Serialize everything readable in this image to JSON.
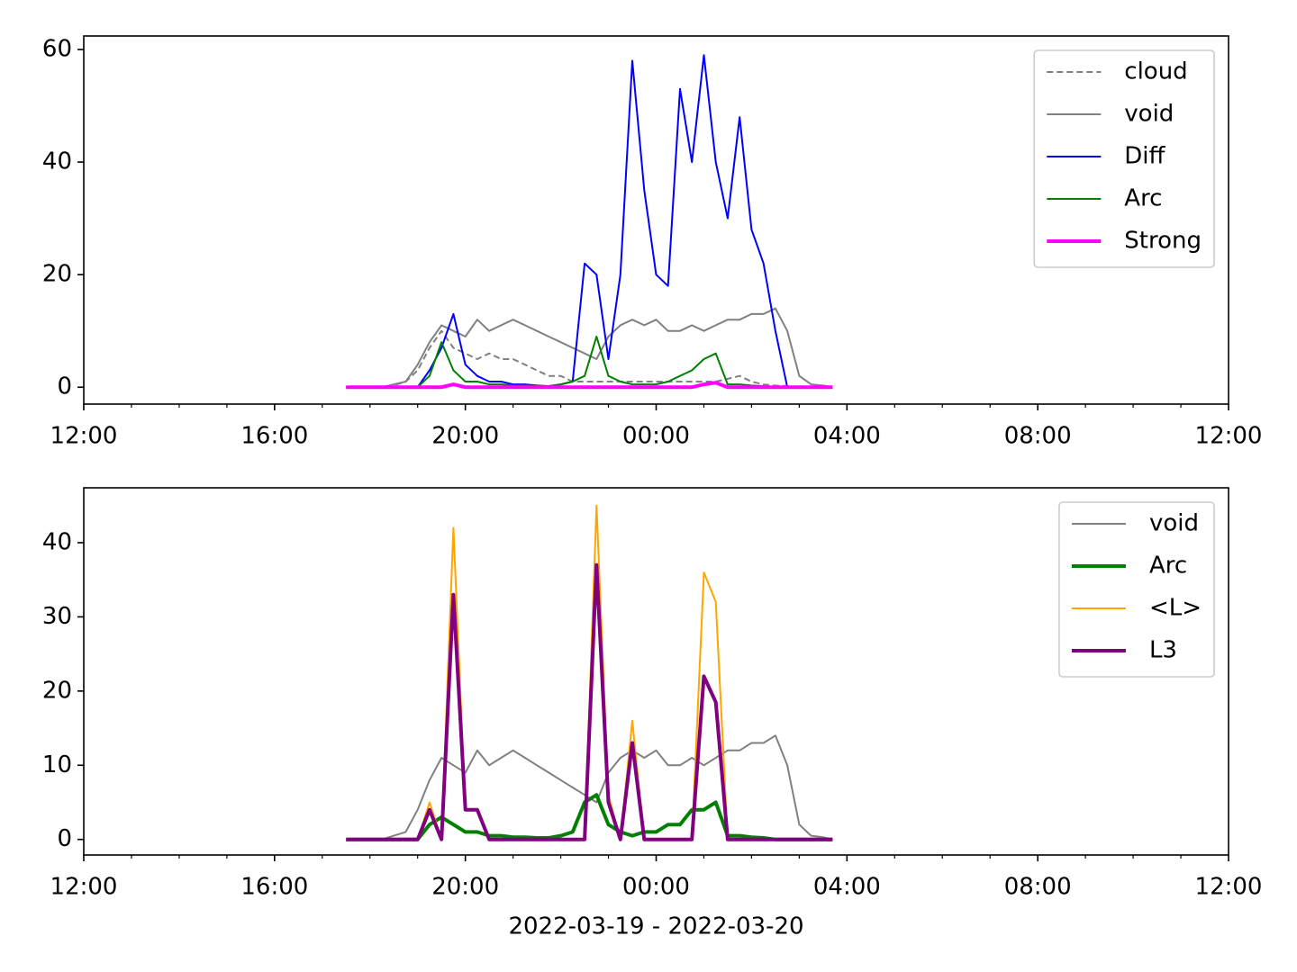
{
  "chart_data": [
    {
      "type": "line",
      "x": [
        17.5,
        17.75,
        18,
        18.25,
        18.5,
        18.75,
        19,
        19.25,
        19.5,
        19.75,
        20,
        20.25,
        20.5,
        20.75,
        21,
        21.25,
        21.5,
        21.75,
        22,
        22.25,
        22.5,
        22.75,
        23,
        23.25,
        23.5,
        23.75,
        24,
        24.25,
        24.5,
        24.75,
        25,
        25.25,
        25.5,
        25.75,
        26,
        26.25,
        26.5,
        26.75,
        27,
        27.25,
        27.5,
        27.7
      ],
      "xlim": [
        12,
        36
      ],
      "xticks": [
        {
          "value": 12,
          "label": "12:00"
        },
        {
          "value": 16,
          "label": "16:00"
        },
        {
          "value": 20,
          "label": "20:00"
        },
        {
          "value": 24,
          "label": "00:00"
        },
        {
          "value": 28,
          "label": "04:00"
        },
        {
          "value": 32,
          "label": "08:00"
        },
        {
          "value": 36,
          "label": "12:00"
        }
      ],
      "xminorticks": [
        13,
        14,
        15,
        17,
        18,
        19,
        21,
        22,
        23,
        25,
        26,
        27,
        29,
        30,
        31,
        33,
        34,
        35
      ],
      "ylim": [
        -3.0,
        62.4
      ],
      "yticks": [
        0,
        20,
        40,
        60
      ],
      "legend": "upper right",
      "series": [
        {
          "name": "cloud",
          "color": "#808080",
          "linestyle": "dashed",
          "linewidth": 2,
          "values": [
            0,
            0,
            0,
            0,
            0.3,
            1,
            3,
            7,
            10,
            7,
            6,
            5,
            6,
            5,
            5,
            4,
            3,
            2,
            2,
            1,
            1,
            1,
            1,
            1,
            1,
            1,
            1,
            1,
            1,
            1,
            1,
            1,
            1.5,
            2,
            1,
            0.5,
            0.3,
            0.2,
            0,
            0,
            0,
            0
          ]
        },
        {
          "name": "void",
          "color": "#808080",
          "linestyle": "solid",
          "linewidth": 2,
          "values": [
            0,
            0,
            0,
            0,
            0.5,
            1,
            4,
            8,
            11,
            10,
            9,
            12,
            10,
            11,
            12,
            11,
            10,
            9,
            8,
            7,
            6,
            5,
            9,
            11,
            12,
            11,
            12,
            10,
            10,
            11,
            10,
            11,
            12,
            12,
            13,
            13,
            14,
            10,
            2,
            0.5,
            0.3,
            0
          ]
        },
        {
          "name": "Diff",
          "color": "#0000ff",
          "linestyle": "solid",
          "linewidth": 2,
          "values": [
            0,
            0,
            0,
            0,
            0,
            0,
            0,
            3,
            7,
            13,
            4,
            2,
            1,
            1,
            0.5,
            0.5,
            0.3,
            0.2,
            0.5,
            1,
            22,
            20,
            5,
            20,
            58,
            35,
            20,
            18,
            53,
            40,
            59,
            40,
            30,
            48,
            28,
            22,
            10,
            0,
            0,
            0,
            0,
            0
          ]
        },
        {
          "name": "Arc",
          "color": "#008000",
          "linestyle": "solid",
          "linewidth": 2,
          "values": [
            0,
            0,
            0,
            0,
            0,
            0,
            0,
            2,
            8,
            3,
            1,
            1,
            0.5,
            0.5,
            0.3,
            0.3,
            0.2,
            0.2,
            0.5,
            1,
            2,
            9,
            2,
            1,
            0.5,
            0.5,
            0.5,
            1,
            2,
            3,
            5,
            6,
            0.5,
            0.5,
            0.3,
            0.2,
            0,
            0,
            0,
            0,
            0,
            0
          ]
        },
        {
          "name": "Strong",
          "color": "#ff00ff",
          "linestyle": "solid",
          "linewidth": 4,
          "values": [
            0,
            0,
            0,
            0,
            0,
            0,
            0,
            0,
            0,
            0.5,
            0,
            0,
            0,
            0,
            0,
            0,
            0,
            0,
            0,
            0,
            0,
            0,
            0,
            0,
            0,
            0,
            0,
            0,
            0,
            0,
            0.5,
            0.8,
            0,
            0,
            0,
            0,
            0,
            0,
            0,
            0,
            0,
            0
          ]
        }
      ]
    },
    {
      "type": "line",
      "x": [
        17.5,
        17.75,
        18,
        18.25,
        18.5,
        18.75,
        19,
        19.25,
        19.5,
        19.75,
        20,
        20.25,
        20.5,
        20.75,
        21,
        21.25,
        21.5,
        21.75,
        22,
        22.25,
        22.5,
        22.75,
        23,
        23.25,
        23.5,
        23.75,
        24,
        24.25,
        24.5,
        24.75,
        25,
        25.25,
        25.5,
        25.75,
        26,
        26.25,
        26.5,
        26.75,
        27,
        27.25,
        27.5,
        27.7
      ],
      "xlim": [
        12,
        36
      ],
      "xticks": [
        {
          "value": 12,
          "label": "12:00"
        },
        {
          "value": 16,
          "label": "16:00"
        },
        {
          "value": 20,
          "label": "20:00"
        },
        {
          "value": 24,
          "label": "00:00"
        },
        {
          "value": 28,
          "label": "04:00"
        },
        {
          "value": 32,
          "label": "08:00"
        },
        {
          "value": 36,
          "label": "12:00"
        }
      ],
      "xminorticks": [
        13,
        14,
        15,
        17,
        18,
        19,
        21,
        22,
        23,
        25,
        26,
        27,
        29,
        30,
        31,
        33,
        34,
        35
      ],
      "ylim": [
        -2.1,
        47.4
      ],
      "yticks": [
        0,
        10,
        20,
        30,
        40
      ],
      "xlabel": "2022-03-19 - 2022-03-20",
      "legend": "upper right",
      "series": [
        {
          "name": "void",
          "color": "#808080",
          "linestyle": "solid",
          "linewidth": 2,
          "values": [
            0,
            0,
            0,
            0,
            0.5,
            1,
            4,
            8,
            11,
            10,
            9,
            12,
            10,
            11,
            12,
            11,
            10,
            9,
            8,
            7,
            6,
            5,
            9,
            11,
            12,
            11,
            12,
            10,
            10,
            11,
            10,
            11,
            12,
            12,
            13,
            13,
            14,
            10,
            2,
            0.5,
            0.3,
            0
          ]
        },
        {
          "name": "Arc",
          "color": "#008000",
          "linestyle": "solid",
          "linewidth": 4,
          "values": [
            0,
            0,
            0,
            0,
            0,
            0,
            0,
            2,
            3,
            2,
            1,
            1,
            0.5,
            0.5,
            0.3,
            0.3,
            0.2,
            0.2,
            0.5,
            1,
            5,
            6,
            2,
            1,
            0.5,
            1,
            1,
            2,
            2,
            4,
            4,
            5,
            0.5,
            0.5,
            0.3,
            0.2,
            0,
            0,
            0,
            0,
            0,
            0
          ]
        },
        {
          "name": "<L>",
          "color": "#ffa500",
          "linestyle": "solid",
          "linewidth": 2,
          "values": [
            0,
            0,
            0,
            0,
            0,
            0,
            0,
            5,
            0,
            42,
            4,
            4,
            0,
            0,
            0,
            0,
            0,
            0,
            0,
            0,
            0,
            45,
            6,
            0,
            16,
            0,
            0,
            0,
            0,
            0,
            36,
            32,
            0,
            0,
            0,
            0,
            0,
            0,
            0,
            0,
            0,
            0
          ]
        },
        {
          "name": "L3",
          "color": "#800080",
          "linestyle": "solid",
          "linewidth": 4,
          "values": [
            0,
            0,
            0,
            0,
            0,
            0,
            0,
            4,
            0,
            33,
            4,
            4,
            0,
            0,
            0,
            0,
            0,
            0,
            0,
            0,
            0,
            37,
            5,
            0,
            13,
            0,
            0,
            0,
            0,
            0,
            22,
            18.5,
            0,
            0,
            0,
            0,
            0,
            0,
            0,
            0,
            0,
            0
          ]
        }
      ]
    }
  ]
}
